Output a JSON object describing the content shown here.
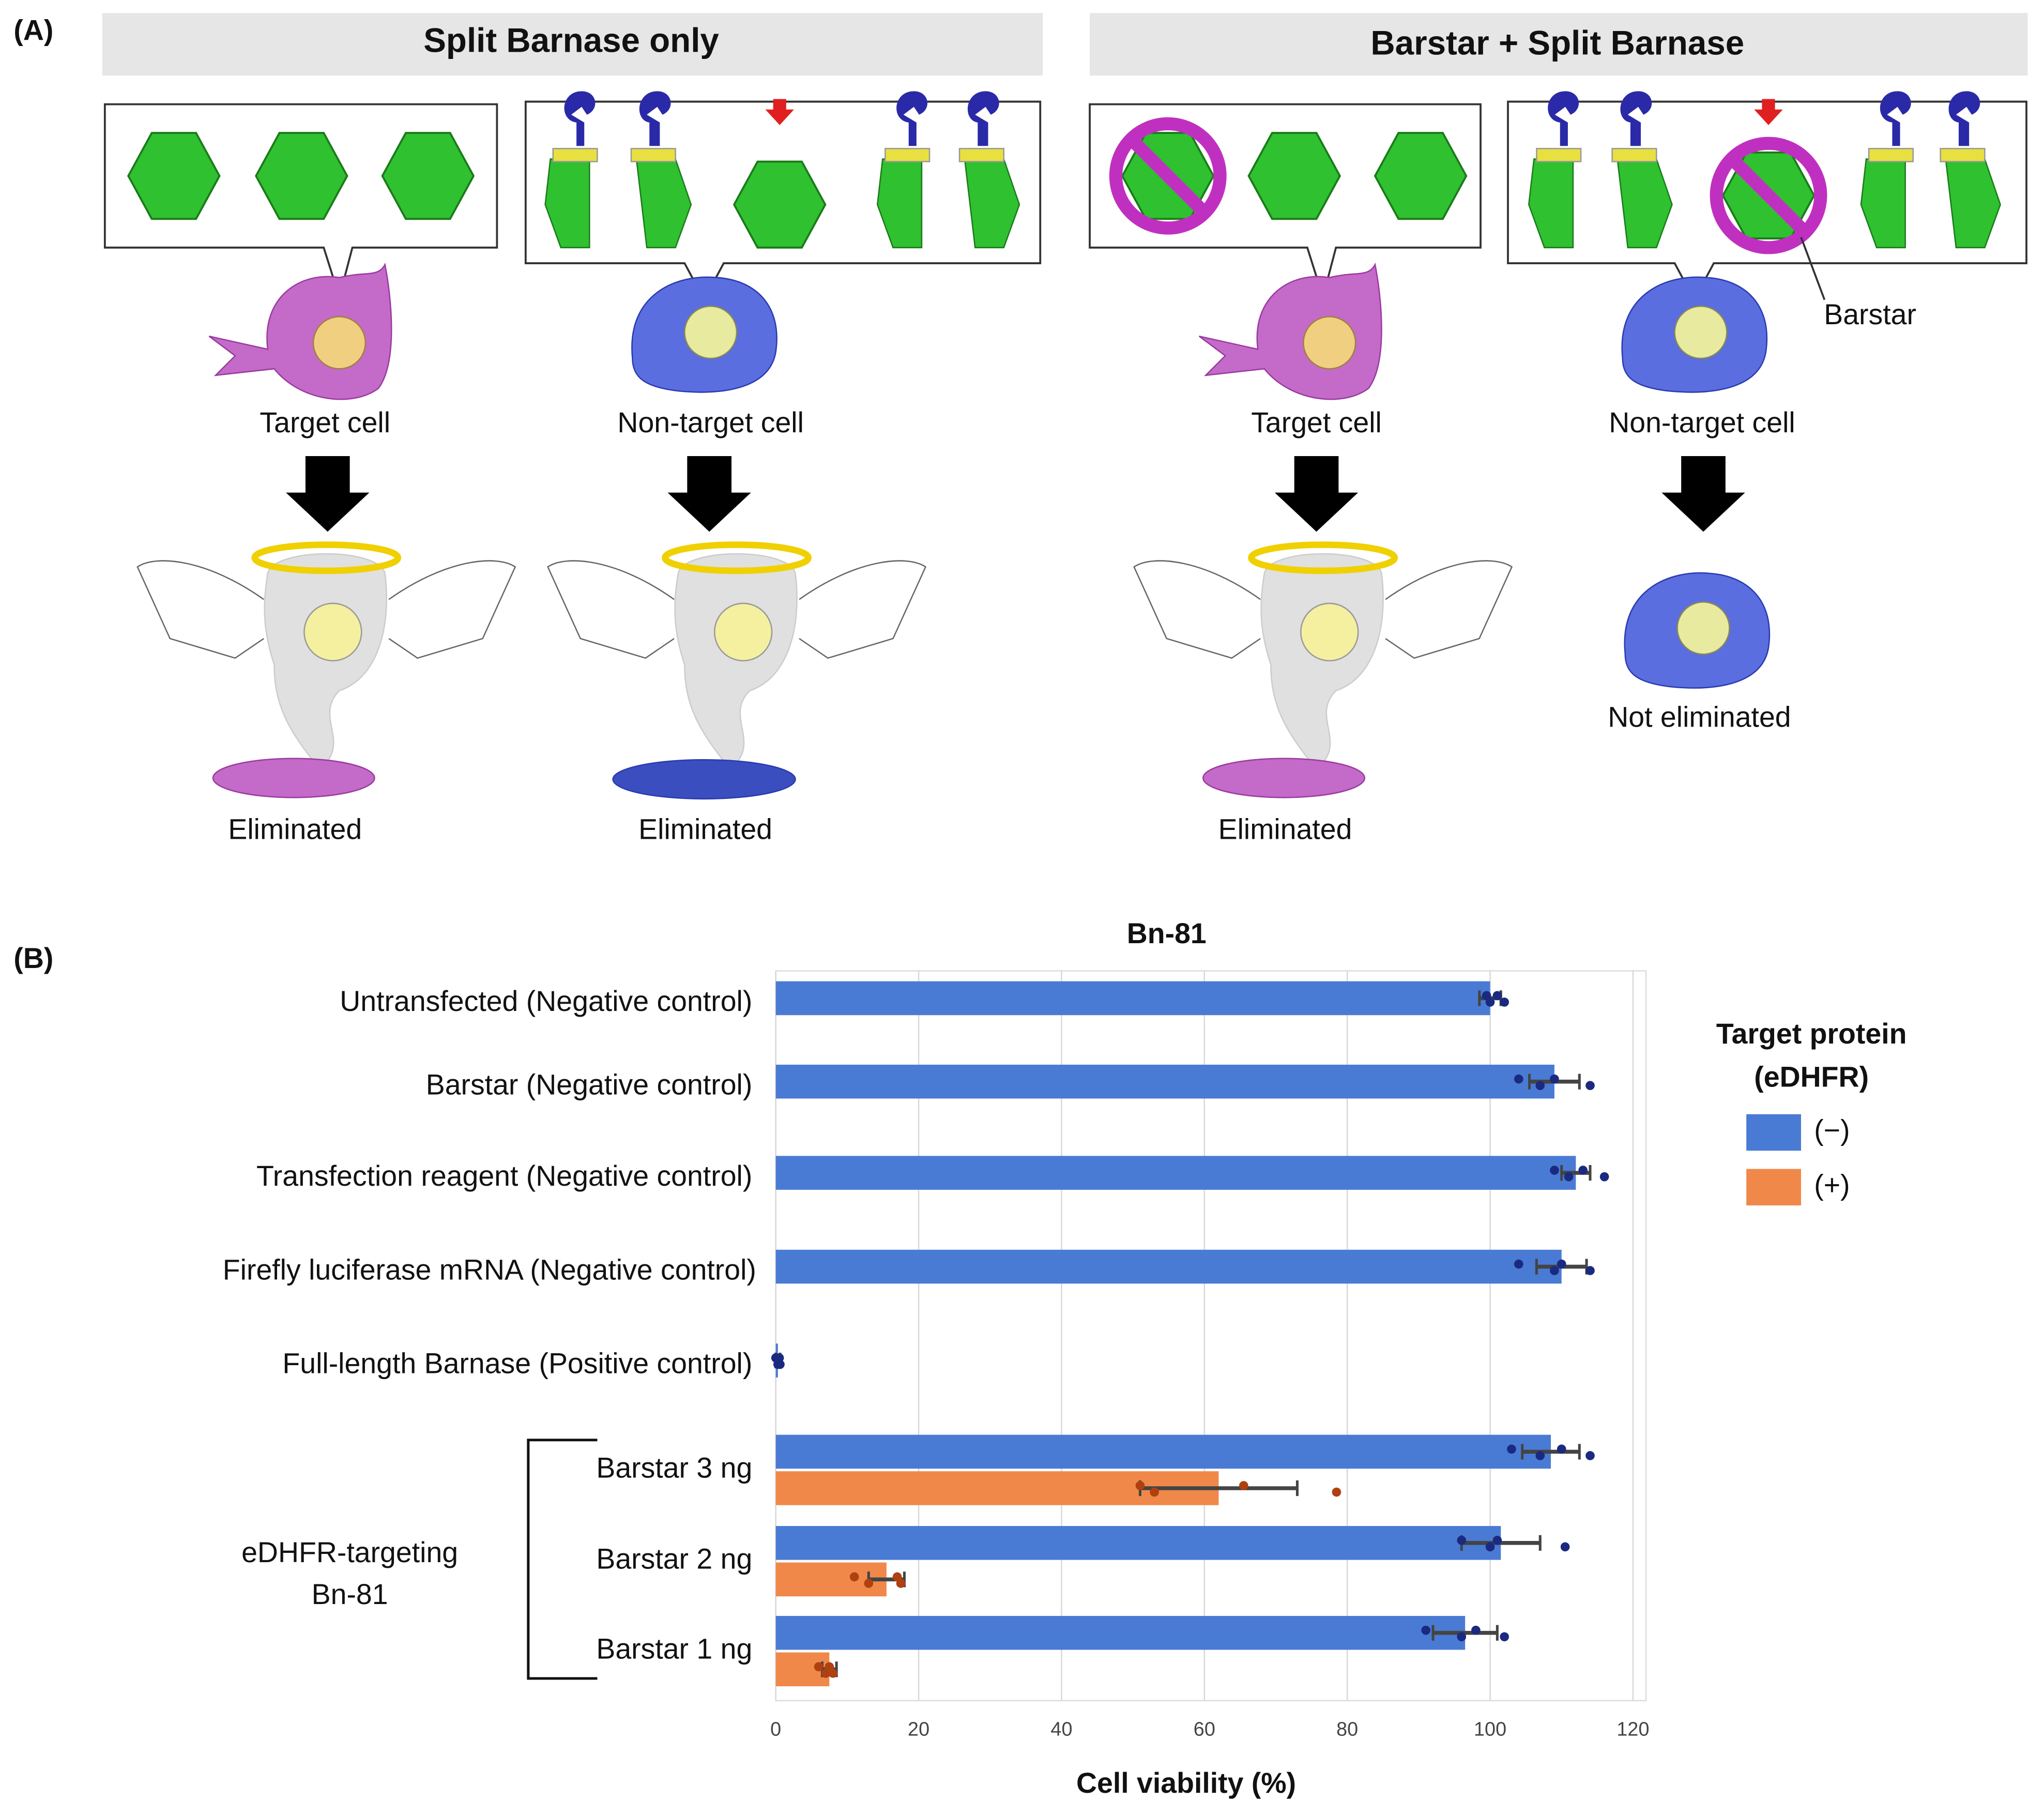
{
  "panel_a": {
    "label": "(A)",
    "left_title": "Split Barnase only",
    "right_title": "Barstar + Split Barnase",
    "cell_labels": [
      "Target cell",
      "Non-target cell",
      "Target cell",
      "Non-target cell"
    ],
    "outcomes": [
      "Eliminated",
      "Eliminated",
      "Eliminated",
      "Not eliminated"
    ],
    "barstar_label": "Barstar"
  },
  "chart_data": {
    "type": "bar",
    "orientation": "horizontal",
    "panel_label": "(B)",
    "title": "Bn-81",
    "xlabel": "Cell viability (%)",
    "categories": [
      "Untransfected (Negative control)",
      "Barstar (Negative control)",
      "Transfection reagent (Negative control)",
      "Firefly luciferase mRNA (Negative control)",
      "Full-length Barnase (Positive control)",
      "Barstar 3 ng",
      "Barstar 2 ng",
      "Barstar 1 ng"
    ],
    "group_label": [
      "eDHFR-targeting",
      "Bn-81"
    ],
    "legend_title": [
      "Target protein",
      "(eDHFR)"
    ],
    "series": [
      {
        "name": "(−)",
        "color": "#4a7bd4",
        "values": [
          100,
          109,
          112,
          110,
          0.3,
          108.5,
          101.5,
          96.5
        ],
        "errors": [
          1.5,
          3.5,
          2,
          3.5,
          0.3,
          4,
          5.5,
          4.5
        ],
        "points": [
          [
            99.5,
            100,
            101,
            102
          ],
          [
            104,
            107,
            109,
            114
          ],
          [
            109,
            111,
            113,
            116
          ],
          [
            104,
            109,
            110,
            114
          ],
          [
            0,
            0.3,
            0.5,
            0.6
          ],
          [
            103,
            107,
            110,
            114
          ],
          [
            96,
            100,
            101,
            110.5
          ],
          [
            91,
            96,
            98,
            102
          ]
        ]
      },
      {
        "name": "(+)",
        "color": "#f0884a",
        "values": [
          null,
          null,
          null,
          null,
          null,
          62,
          15.5,
          7.5
        ],
        "errors": [
          null,
          null,
          null,
          null,
          null,
          11,
          2.5,
          1
        ],
        "points": [
          null,
          null,
          null,
          null,
          null,
          [
            51,
            53,
            65.5,
            78.5
          ],
          [
            11,
            13,
            17,
            17.5
          ],
          [
            6,
            7,
            7.5,
            8
          ]
        ]
      }
    ],
    "xlim": [
      0,
      120
    ],
    "xticks": [
      0,
      20,
      40,
      60,
      80,
      100,
      120
    ],
    "grid": true
  }
}
